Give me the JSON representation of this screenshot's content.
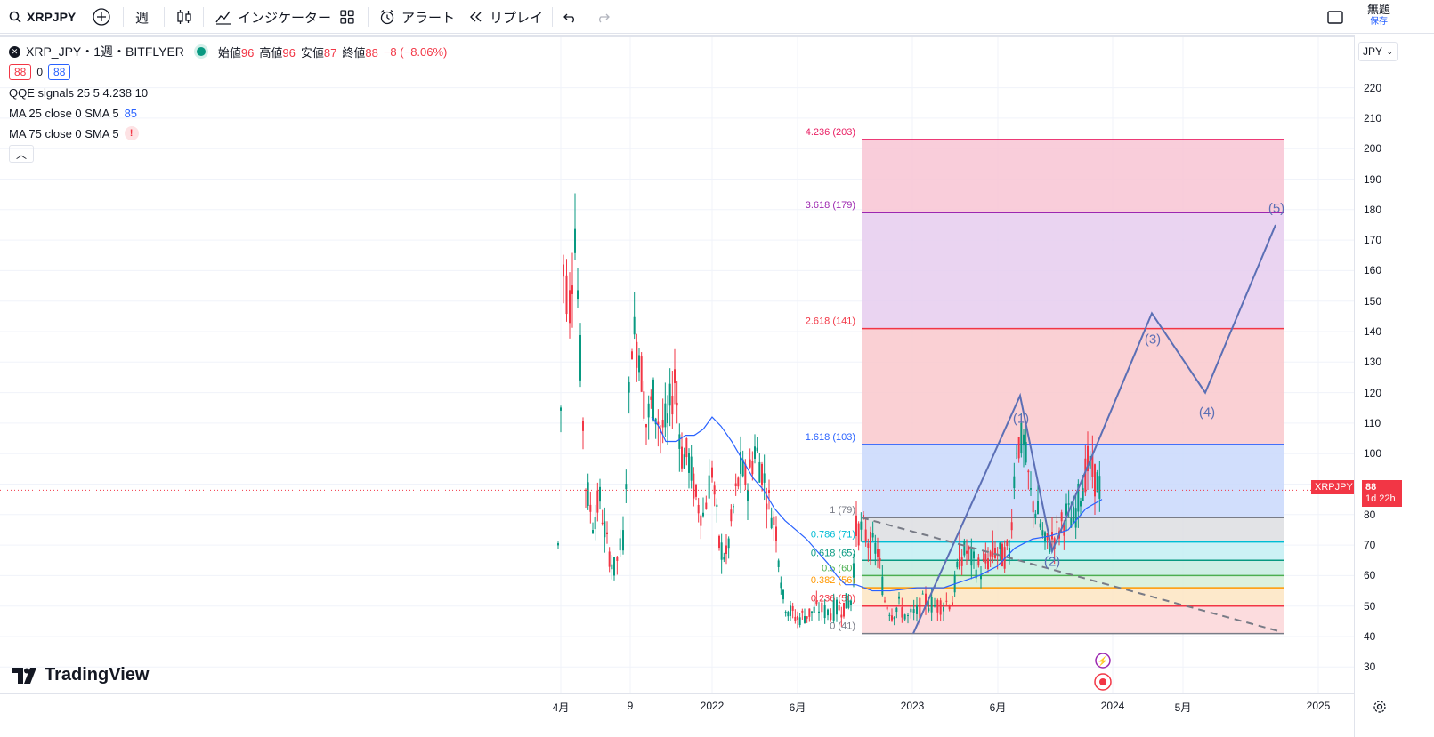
{
  "toolbar": {
    "symbol": "XRPJPY",
    "interval": "週",
    "indicators": "インジケーター",
    "alert": "アラート",
    "replay": "リプレイ",
    "layout_name": "無題",
    "save": "保存"
  },
  "legend": {
    "title": "XRP_JPY・1週・BITFLYER",
    "ohlc": [
      {
        "label": "始値",
        "value": "96"
      },
      {
        "label": "高値",
        "value": "96"
      },
      {
        "label": "安値",
        "value": "87"
      },
      {
        "label": "終値",
        "value": "88"
      }
    ],
    "change": "−8 (−8.06%)",
    "bid": "88",
    "spread": "0",
    "ask": "88",
    "indicators": [
      {
        "name": "QQE signals 25 5 4.238 10",
        "value": ""
      },
      {
        "name": "MA 25 close 0 SMA 5",
        "value": "85"
      },
      {
        "name": "MA 75 close 0 SMA 5",
        "value": "!"
      }
    ]
  },
  "price_axis": {
    "currency": "JPY",
    "ticks": [
      "220",
      "210",
      "200",
      "190",
      "180",
      "170",
      "160",
      "150",
      "140",
      "130",
      "120",
      "110",
      "100",
      "90",
      "80",
      "70",
      "60",
      "50",
      "40",
      "30"
    ],
    "current_price": "88",
    "countdown": "1d 22h",
    "symbol_tag": "XRPJPY"
  },
  "time_axis": {
    "ticks": [
      "4月",
      "9",
      "2022",
      "6月",
      "2023",
      "6月",
      "2024",
      "5月",
      "2025"
    ]
  },
  "brand": {
    "name": "TradingView"
  },
  "colors": {
    "up": "#089981",
    "down": "#f23645",
    "ma": "#2962ff",
    "wave": "#5b6fb5"
  },
  "fib_levels": [
    {
      "ratio": 4.236,
      "label": "4.236 (203)",
      "price": 203,
      "color": "#e91e63",
      "fill": "#f8c4d3"
    },
    {
      "ratio": 3.618,
      "label": "3.618 (179)",
      "price": 179,
      "color": "#9c27b0",
      "fill": "#e6cdee"
    },
    {
      "ratio": 2.618,
      "label": "2.618 (141)",
      "price": 141,
      "color": "#f23645",
      "fill": "#f9c8cc"
    },
    {
      "ratio": 1.618,
      "label": "1.618 (103)",
      "price": 103,
      "color": "#2962ff",
      "fill": "#c9d8fb"
    },
    {
      "ratio": 1,
      "label": "1 (79)",
      "price": 79,
      "color": "#787b86",
      "fill": "#dddee2"
    },
    {
      "ratio": 0.786,
      "label": "0.786 (71)",
      "price": 71,
      "color": "#00bcd4",
      "fill": "#c3eef3"
    },
    {
      "ratio": 0.618,
      "label": "0.618 (65)",
      "price": 65,
      "color": "#089981",
      "fill": "#c5ece0"
    },
    {
      "ratio": 0.5,
      "label": "0.5 (60)",
      "price": 60,
      "color": "#4caf50",
      "fill": "#d6eed8"
    },
    {
      "ratio": 0.382,
      "label": "0.382 (56)",
      "price": 56,
      "color": "#ff9800",
      "fill": "#fde5c2"
    },
    {
      "ratio": 0.236,
      "label": "0.236 (50)",
      "price": 50,
      "color": "#f23645",
      "fill": "#fbd6d8"
    },
    {
      "ratio": 0,
      "label": "0 (41)",
      "price": 41,
      "color": "#787b86",
      "fill": ""
    }
  ],
  "waves": [
    "(1)",
    "(2)",
    "(3)",
    "(4)",
    "(5)"
  ]
}
